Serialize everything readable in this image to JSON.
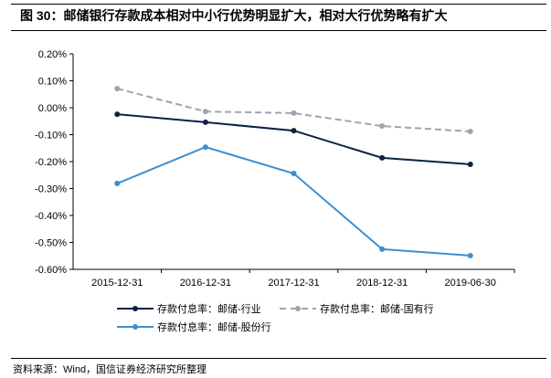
{
  "title": "图 30：邮储银行存款成本相对中小行优势明显扩大，相对大行优势略有扩大",
  "source": "资料来源：Wind，国信证券经济研究所整理",
  "chart_data": {
    "type": "line",
    "categories": [
      "2015-12-31",
      "2016-12-31",
      "2017-12-31",
      "2018-12-31",
      "2019-06-30"
    ],
    "ylim": [
      -0.6,
      0.2
    ],
    "yticks": [
      0.2,
      0.1,
      0.0,
      -0.1,
      -0.2,
      -0.3,
      -0.4,
      -0.5,
      -0.6
    ],
    "ytick_labels": [
      "0.20%",
      "0.10%",
      "0.00%",
      "-0.10%",
      "-0.20%",
      "-0.30%",
      "-0.40%",
      "-0.50%",
      "-0.60%"
    ],
    "grid": false,
    "legend_position": "bottom",
    "series": [
      {
        "name": "存款付息率：邮储-行业",
        "values": [
          -0.024,
          -0.054,
          -0.085,
          -0.186,
          -0.21
        ],
        "color": "#0d2145",
        "dash": false
      },
      {
        "name": "存款付息率：邮储-国有行",
        "values": [
          0.071,
          -0.014,
          -0.02,
          -0.068,
          -0.088
        ],
        "color": "#9ba5b1",
        "dash": true
      },
      {
        "name": "存款付息率：邮储-股份行",
        "values": [
          -0.281,
          -0.146,
          -0.244,
          -0.525,
          -0.549
        ],
        "color": "#3b8fd1",
        "dash": false
      }
    ]
  }
}
